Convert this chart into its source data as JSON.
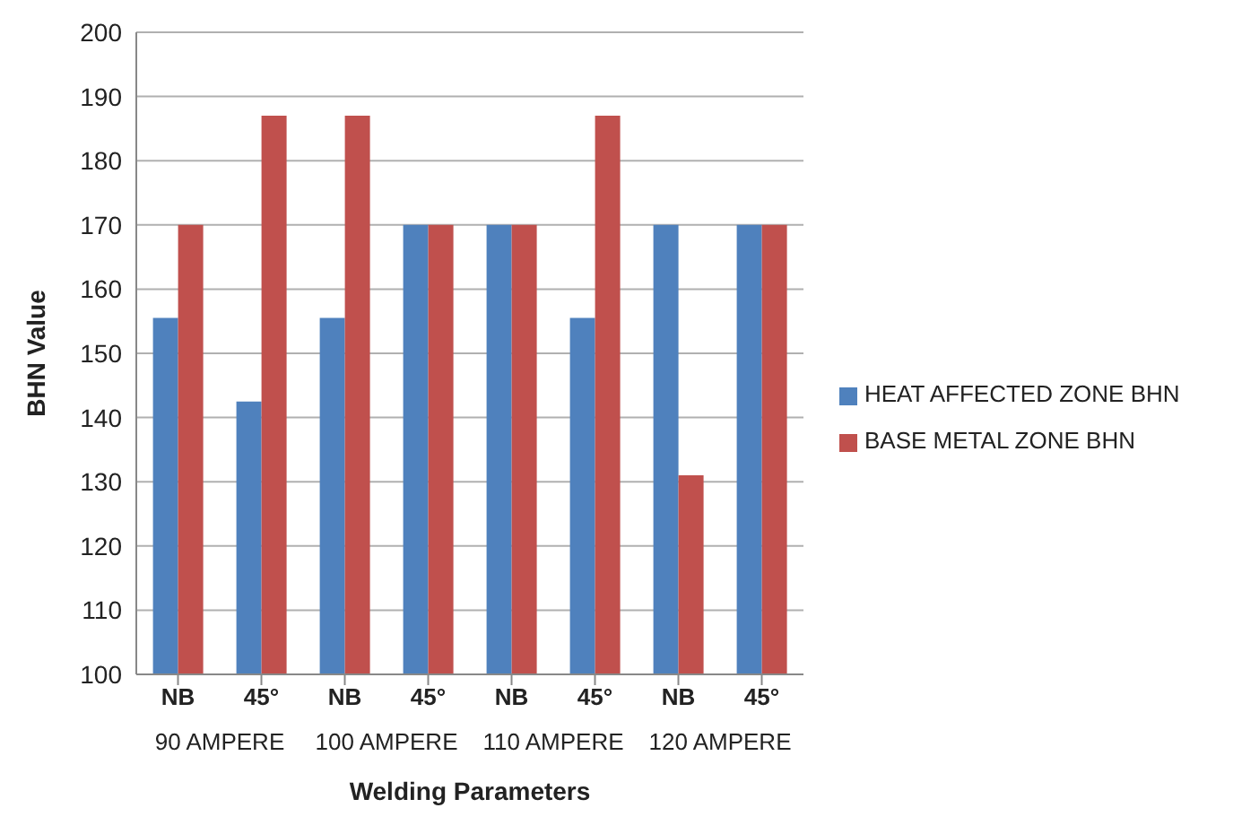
{
  "chart_data": {
    "type": "bar",
    "xlabel": "Welding Parameters",
    "ylabel": "BHN Value",
    "categories": [
      "NB",
      "45°",
      "NB",
      "45°",
      "NB",
      "45°",
      "NB",
      "45°"
    ],
    "series": [
      {
        "name": "HEAT AFFECTED ZONE BHN",
        "color": "#4f81bd",
        "values": [
          155.5,
          142.5,
          155.5,
          170,
          170,
          155.5,
          170,
          170
        ]
      },
      {
        "name": "BASE METAL ZONE BHN",
        "color": "#c0504d",
        "values": [
          170,
          187,
          187,
          170,
          170,
          187,
          131,
          170
        ]
      }
    ],
    "annotations": [
      "90 AMPERE",
      "100 AMPERE",
      "110 AMPERE",
      "120 AMPERE"
    ],
    "ylim": [
      100,
      200
    ],
    "yticks": [
      100,
      110,
      120,
      130,
      140,
      150,
      160,
      170,
      180,
      190,
      200
    ],
    "grid": "y",
    "legend": "right"
  }
}
